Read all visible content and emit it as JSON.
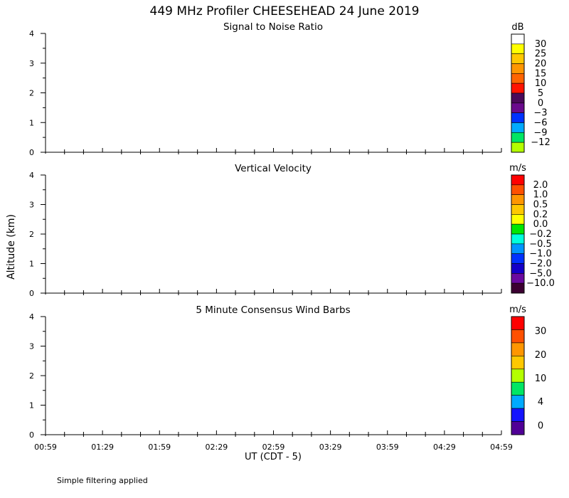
{
  "title": "449 MHz Profiler CHEESEHEAD 24 June 2019",
  "ylabel": "Altitude (km)",
  "xlabel": "UT  (CDT - 5)",
  "footnote": "Simple filtering applied",
  "x_tick_labels": [
    "00:59",
    "01:29",
    "01:59",
    "02:29",
    "02:59",
    "03:29",
    "03:59",
    "04:29",
    "04:59"
  ],
  "chart_data": [
    {
      "type": "heatmap",
      "title": "Signal to Noise Ratio",
      "ylim": [
        0,
        4
      ],
      "y_ticks": [
        "0",
        "1",
        "2",
        "3",
        "4"
      ],
      "colorbar": {
        "unit": "dB",
        "labels": [
          "30",
          "25",
          "20",
          "15",
          "10",
          "5",
          "0",
          "−3",
          "−6",
          "−9",
          "−12"
        ],
        "colors": [
          "#ffffff",
          "#ffff00",
          "#ffc800",
          "#ff9600",
          "#ff6400",
          "#ff1400",
          "#4b0a5a",
          "#6a0a8c",
          "#0032ff",
          "#00aaff",
          "#00e664",
          "#b4ff00"
        ]
      },
      "series": []
    },
    {
      "type": "heatmap",
      "title": "Vertical Velocity",
      "ylim": [
        0,
        4
      ],
      "y_ticks": [
        "0",
        "1",
        "2",
        "3",
        "4"
      ],
      "colorbar": {
        "unit": "m/s",
        "labels": [
          "2.0",
          "1.0",
          "0.5",
          "0.2",
          "0.0",
          "−0.2",
          "−0.5",
          "−1.0",
          "−2.0",
          "−5.0",
          "−10.0"
        ],
        "colors": [
          "#ff0000",
          "#ff5000",
          "#ff9600",
          "#ffc800",
          "#ffff00",
          "#00e600",
          "#00ffdc",
          "#0096ff",
          "#0032ff",
          "#1400c8",
          "#6a0aa0",
          "#3c0032"
        ]
      },
      "series": []
    },
    {
      "type": "heatmap",
      "title": "5 Minute Consensus Wind Barbs",
      "ylim": [
        0,
        4
      ],
      "y_ticks": [
        "0",
        "1",
        "2",
        "3",
        "4"
      ],
      "colorbar": {
        "unit": "m/s",
        "labels": [
          "30",
          "20",
          "10",
          "4",
          "0"
        ],
        "colors": [
          "#ff0000",
          "#ff5000",
          "#ff9600",
          "#ffc800",
          "#b4ff00",
          "#00e664",
          "#00aaff",
          "#1414ff",
          "#500096"
        ]
      },
      "series": []
    }
  ]
}
